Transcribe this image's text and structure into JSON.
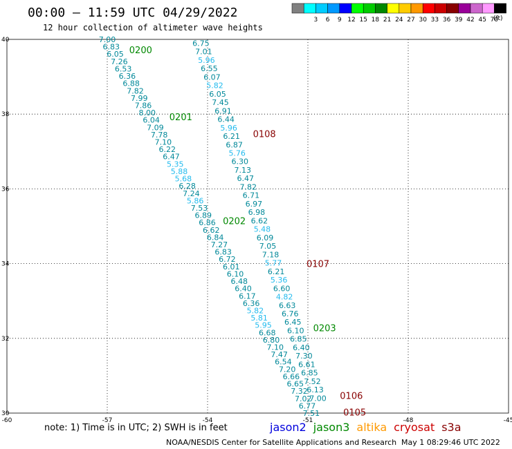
{
  "header": {
    "title": "00:00 – 11:59 UTC 04/29/2022",
    "subtitle": "12 hour collection of altimeter wave heights"
  },
  "color_scale": {
    "units": "(ft)",
    "bins": [
      {
        "label": "",
        "color": "#808080"
      },
      {
        "label": "3",
        "color": "#00ffff"
      },
      {
        "label": "6",
        "color": "#00ccff"
      },
      {
        "label": "9",
        "color": "#0099ff"
      },
      {
        "label": "12",
        "color": "#0000ff"
      },
      {
        "label": "15",
        "color": "#00ff00"
      },
      {
        "label": "18",
        "color": "#00cc00"
      },
      {
        "label": "21",
        "color": "#008800"
      },
      {
        "label": "24",
        "color": "#ffff00"
      },
      {
        "label": "27",
        "color": "#ffcc00"
      },
      {
        "label": "30",
        "color": "#ff9900"
      },
      {
        "label": "33",
        "color": "#ff0000"
      },
      {
        "label": "36",
        "color": "#cc0000"
      },
      {
        "label": "39",
        "color": "#880000"
      },
      {
        "label": "42",
        "color": "#990099"
      },
      {
        "label": "45",
        "color": "#cc66cc"
      },
      {
        "label": "70",
        "color": "#ff99ff"
      },
      {
        "label": "",
        "color": "#000000"
      }
    ]
  },
  "map": {
    "lon_range": [
      -60,
      -45
    ],
    "lat_range": [
      30,
      40
    ],
    "x_ticks": [
      {
        "value": -60,
        "label": "-60"
      },
      {
        "value": -57,
        "label": "-57"
      },
      {
        "value": -54,
        "label": "-54"
      },
      {
        "value": -51,
        "label": "-51"
      },
      {
        "value": -48,
        "label": "-48"
      },
      {
        "value": -45,
        "label": "-45"
      }
    ],
    "y_ticks": [
      {
        "value": 30,
        "label": "30"
      },
      {
        "value": 32,
        "label": "32"
      },
      {
        "value": 34,
        "label": "34"
      },
      {
        "value": 36,
        "label": "36"
      },
      {
        "value": 38,
        "label": "38"
      },
      {
        "value": 40,
        "label": "40"
      }
    ],
    "colors": {
      "light": "#22bbee",
      "dark": "#008899",
      "jason3": "#008800",
      "cryosat": "#880000"
    },
    "tracks": [
      {
        "start": [
          -57.0,
          40.0
        ],
        "end": [
          -50.9,
          30.0
        ],
        "labels": [
          "7.00",
          "6.83",
          "6.05",
          "7.26",
          "6.53",
          "6.36",
          "6.88",
          "7.82",
          "7.99",
          "7.86",
          "8.00",
          "6.04",
          "7.09",
          "7.78",
          "7.10",
          "6.22",
          "6.47",
          "5.35",
          "5.88",
          "5.68",
          "6.28",
          "7.24",
          "5.86",
          "7.53",
          "6.89",
          "6.86",
          "6.62",
          "6.84",
          "7.27",
          "6.83",
          "6.72",
          "6.01",
          "6.10",
          "6.48",
          "6.40",
          "6.17",
          "6.36",
          "5.82",
          "5.81",
          "5.95",
          "6.68",
          "6.80",
          "7.10",
          "7.47",
          "6.54",
          "7.20",
          "6.66",
          "6.65",
          "7.32",
          "7.02",
          "6.77",
          "7.51"
        ]
      },
      {
        "start": [
          -54.2,
          39.9
        ],
        "end": [
          -50.7,
          30.4
        ],
        "labels": [
          "6.75",
          "7.01",
          "5.96",
          "6.55",
          "6.07",
          "5.82",
          "6.05",
          "7.45",
          "6.91",
          "6.44",
          "5.96",
          "6.21",
          "6.87",
          "5.76",
          "6.30",
          "7.13",
          "6.47",
          "7.82",
          "6.71",
          "6.97",
          "6.98",
          "6.62",
          "5.48",
          "6.09",
          "7.05",
          "7.18",
          "5.77",
          "6.21",
          "5.36",
          "6.60",
          "4.82",
          "6.63",
          "6.76",
          "6.45",
          "6.10",
          "6.85",
          "6.40",
          "7.30",
          "6.61",
          "6.85",
          "7.52",
          "6.13",
          "7.00"
        ]
      }
    ],
    "time_markers": [
      {
        "label": "0200",
        "lon": -56.0,
        "lat": 39.72,
        "satellite": "jason3"
      },
      {
        "label": "0201",
        "lon": -54.8,
        "lat": 37.93,
        "satellite": "jason3"
      },
      {
        "label": "0202",
        "lon": -53.2,
        "lat": 35.15,
        "satellite": "jason3"
      },
      {
        "label": "0203",
        "lon": -50.5,
        "lat": 32.28,
        "satellite": "jason3"
      },
      {
        "label": "0108",
        "lon": -52.3,
        "lat": 37.48,
        "satellite": "cryosat"
      },
      {
        "label": "0107",
        "lon": -50.7,
        "lat": 34.0,
        "satellite": "cryosat"
      },
      {
        "label": "0106",
        "lon": -49.7,
        "lat": 30.47,
        "satellite": "cryosat"
      },
      {
        "label": "0105",
        "lon": -49.6,
        "lat": 30.03,
        "satellite": "cryosat"
      }
    ]
  },
  "footer": {
    "note": "note:  1) Time is in UTC; 2) SWH is in feet",
    "satellites": [
      {
        "name": "jason2",
        "color": "#0000dd"
      },
      {
        "name": "jason3",
        "color": "#008800"
      },
      {
        "name": "altika",
        "color": "#ff9900"
      },
      {
        "name": "cryosat",
        "color": "#cc0000"
      },
      {
        "name": "s3a",
        "color": "#880000"
      }
    ],
    "credit": "NOAA/NESDIS Center for Satellite Applications and Research",
    "timestamp": "May  1 08:29:46 UTC 2022"
  }
}
